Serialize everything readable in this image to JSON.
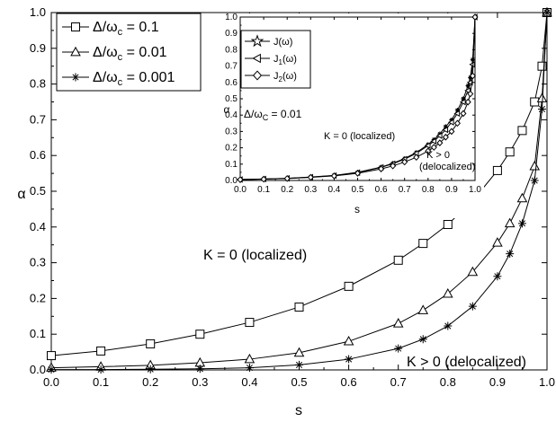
{
  "chart_data": [
    {
      "type": "line",
      "xlabel": "s",
      "ylabel": "α",
      "xlim": [
        0.0,
        1.0
      ],
      "ylim": [
        0.0,
        1.0
      ],
      "xticks": [
        "0.0",
        "0.1",
        "0.2",
        "0.3",
        "0.4",
        "0.5",
        "0.6",
        "0.7",
        "0.8",
        "0.9",
        "1.0"
      ],
      "yticks": [
        "0.0",
        "0.1",
        "0.2",
        "0.3",
        "0.4",
        "0.5",
        "0.6",
        "0.7",
        "0.8",
        "0.9",
        "1.0"
      ],
      "legend_position": "top-left",
      "grid": false,
      "series": [
        {
          "name": "Δ/ω",
          "name_sub": "c",
          "name_suffix": " = 0.1",
          "marker": "square",
          "x": [
            0.0,
            0.1,
            0.2,
            0.3,
            0.4,
            0.5,
            0.6,
            0.7,
            0.75,
            0.8,
            0.85,
            0.9,
            0.925,
            0.95,
            0.975,
            0.99,
            1.0
          ],
          "y": [
            0.04,
            0.053,
            0.073,
            0.1,
            0.133,
            0.176,
            0.234,
            0.307,
            0.354,
            0.407,
            0.473,
            0.558,
            0.61,
            0.67,
            0.75,
            0.85,
            1.0
          ]
        },
        {
          "name": "Δ/ω",
          "name_sub": "c",
          "name_suffix": " = 0.01",
          "marker": "triangle",
          "x": [
            0.0,
            0.1,
            0.2,
            0.3,
            0.4,
            0.5,
            0.6,
            0.7,
            0.75,
            0.8,
            0.85,
            0.9,
            0.925,
            0.95,
            0.975,
            0.99,
            1.0
          ],
          "y": [
            0.006,
            0.009,
            0.013,
            0.02,
            0.03,
            0.048,
            0.08,
            0.13,
            0.167,
            0.213,
            0.274,
            0.356,
            0.41,
            0.48,
            0.57,
            0.76,
            1.0
          ]
        },
        {
          "name": "Δ/ω",
          "name_sub": "c",
          "name_suffix": " = 0.001",
          "marker": "star",
          "x": [
            0.0,
            0.1,
            0.2,
            0.3,
            0.4,
            0.5,
            0.6,
            0.7,
            0.75,
            0.8,
            0.85,
            0.9,
            0.925,
            0.95,
            0.975,
            0.99,
            1.0
          ],
          "y": [
            0.001,
            0.001,
            0.002,
            0.003,
            0.006,
            0.014,
            0.03,
            0.06,
            0.086,
            0.123,
            0.178,
            0.262,
            0.325,
            0.41,
            0.53,
            0.73,
            1.0
          ]
        }
      ],
      "annotations": [
        {
          "text": "K = 0 (localized)",
          "x": 0.28,
          "y": 0.31
        },
        {
          "text": "K > 0 (delocalized)",
          "x": 0.78,
          "y": 0.022
        }
      ]
    },
    {
      "type": "line",
      "xlabel": "s",
      "ylabel": "α",
      "xlim": [
        0.0,
        1.0
      ],
      "ylim": [
        0.0,
        1.0
      ],
      "xticks": [
        "0.0",
        "0.1",
        "0.2",
        "0.3",
        "0.4",
        "0.5",
        "0.6",
        "0.7",
        "0.8",
        "0.9",
        "1.0"
      ],
      "yticks": [
        "0.0",
        "0.1",
        "0.2",
        "0.3",
        "0.4",
        "0.5",
        "0.6",
        "0.7",
        "0.8",
        "0.9",
        "1.0"
      ],
      "legend_position": "top-left",
      "grid": false,
      "parameter_label": {
        "text": "Δ/ω",
        "sub": "C",
        "suffix": " = 0.01"
      },
      "series": [
        {
          "name": "J(ω)",
          "marker": "star",
          "x": [
            0.0,
            0.1,
            0.2,
            0.3,
            0.4,
            0.5,
            0.6,
            0.65,
            0.7,
            0.75,
            0.8,
            0.825,
            0.85,
            0.875,
            0.9,
            0.925,
            0.95,
            0.97,
            0.98,
            0.99,
            1.0
          ],
          "y": [
            0.006,
            0.009,
            0.013,
            0.021,
            0.031,
            0.05,
            0.082,
            0.105,
            0.134,
            0.171,
            0.22,
            0.25,
            0.285,
            0.33,
            0.37,
            0.43,
            0.5,
            0.58,
            0.63,
            0.74,
            1.0
          ]
        },
        {
          "name": "J",
          "name_sub": "1",
          "name_suffix": "(ω)",
          "marker": "triangle-left",
          "x": [
            0.0,
            0.1,
            0.2,
            0.3,
            0.4,
            0.5,
            0.6,
            0.65,
            0.7,
            0.75,
            0.8,
            0.825,
            0.85,
            0.875,
            0.9,
            0.925,
            0.95,
            0.97,
            0.98,
            0.99,
            1.0
          ],
          "y": [
            0.006,
            0.009,
            0.013,
            0.02,
            0.03,
            0.048,
            0.08,
            0.102,
            0.13,
            0.166,
            0.213,
            0.24,
            0.274,
            0.31,
            0.356,
            0.41,
            0.48,
            0.55,
            0.6,
            0.71,
            1.0
          ]
        },
        {
          "name": "J",
          "name_sub": "2",
          "name_suffix": "(ω)",
          "marker": "diamond",
          "x": [
            0.0,
            0.1,
            0.2,
            0.3,
            0.4,
            0.5,
            0.6,
            0.65,
            0.7,
            0.75,
            0.8,
            0.825,
            0.85,
            0.875,
            0.9,
            0.925,
            0.95,
            0.97,
            0.98,
            0.99,
            1.0
          ],
          "y": [
            0.005,
            0.008,
            0.012,
            0.019,
            0.028,
            0.044,
            0.071,
            0.089,
            0.113,
            0.142,
            0.18,
            0.203,
            0.23,
            0.265,
            0.3,
            0.35,
            0.41,
            0.48,
            0.53,
            0.64,
            1.0
          ]
        }
      ],
      "annotations": [
        {
          "text": "K = 0 (localized)",
          "x": 0.53,
          "y": 0.25
        },
        {
          "text": "K > 0",
          "x": 0.86,
          "y": 0.12
        },
        {
          "text": "(delocalized)",
          "x": 0.79,
          "y": 0.06
        }
      ]
    }
  ]
}
